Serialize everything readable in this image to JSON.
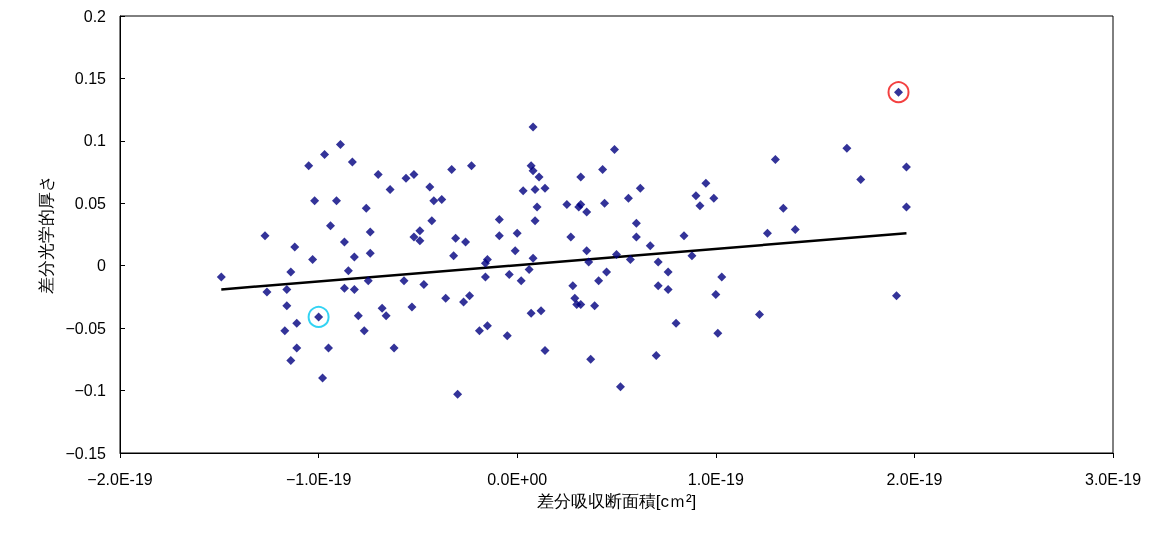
{
  "chart_data": {
    "type": "scatter",
    "xlabel": "差分吸収断面積[cｍ²]",
    "ylabel": "差分光学的厚さ",
    "xlim": [
      -2e-19,
      3e-19
    ],
    "xticks": [
      {
        "value": -2e-19,
        "label": "−2.0E-19"
      },
      {
        "value": -1e-19,
        "label": "−1.0E-19"
      },
      {
        "value": 0,
        "label": "0.0E+00"
      },
      {
        "value": 1e-19,
        "label": "1.0E-19"
      },
      {
        "value": 2e-19,
        "label": "2.0E-19"
      },
      {
        "value": 3e-19,
        "label": "3.0E-19"
      }
    ],
    "ylim": [
      -0.15,
      0.2
    ],
    "yticks": [
      -0.15,
      -0.1,
      -0.05,
      0,
      0.05,
      0.1,
      0.15,
      0.2
    ],
    "grid": false,
    "series": [
      {
        "marker": "diamond",
        "color": "#000080",
        "x": [
          -1.49e-19,
          -1.27e-19,
          -1.26e-19,
          -1.12e-19,
          -1.14e-19,
          -1.16e-19,
          -1.16e-19,
          -1.03e-19,
          -1e-19,
          -1.11e-19,
          -1.17e-19,
          -1.11e-19,
          -1.14e-19,
          -9.5e-20,
          -9.8e-20,
          -1.05e-19,
          -9.7e-20,
          -8.9e-20,
          -8.3e-20,
          -1.02e-19,
          -9.1e-20,
          -7.6e-20,
          -9.4e-20,
          -8.7e-20,
          -7.4e-20,
          -8.2e-20,
          -7.4e-20,
          -8.5e-20,
          -8.7e-20,
          -8.2e-20,
          -7.5e-20,
          -8e-20,
          -7.7e-20,
          8e-21,
          -7e-20,
          -6.4e-20,
          -5.6e-20,
          -5.2e-20,
          -4.4e-20,
          -4.2e-20,
          -3.8e-20,
          -3.3e-20,
          -2.3e-20,
          -4.3e-20,
          -5.2e-20,
          -4.9e-20,
          -4.9e-20,
          -3.1e-20,
          -2.6e-20,
          -3.2e-20,
          -9e-21,
          -9e-21,
          0.0,
          -1e-21,
          -1.5e-20,
          -1.6e-20,
          -1.6e-20,
          -4e-21,
          2e-21,
          6e-21,
          8e-21,
          -5.7e-20,
          -4.7e-20,
          -3.6e-20,
          -2.7e-20,
          -2.4e-20,
          -6.8e-20,
          -6.6e-20,
          -5.3e-20,
          -6.2e-20,
          -1.9e-20,
          -1.5e-20,
          -5e-21,
          7e-21,
          1.2e-20,
          -3e-20,
          7e-21,
          8e-21,
          3e-21,
          9e-21,
          1e-20,
          9e-21,
          1.1e-20,
          1.4e-20,
          1.4e-20,
          4.9e-20,
          3.2e-20,
          4.3e-20,
          2.5e-20,
          3.2e-20,
          3.1e-20,
          3.5e-20,
          4.4e-20,
          5.6e-20,
          6.2e-20,
          6e-20,
          6e-20,
          2.7e-20,
          3.5e-20,
          3.6e-20,
          5e-20,
          5.7e-20,
          6.7e-20,
          7.1e-20,
          8.4e-20,
          8.8e-20,
          9.5e-20,
          9e-20,
          9.2e-20,
          4.5e-20,
          4.1e-20,
          2.8e-20,
          2.9e-20,
          3e-20,
          3.2e-20,
          3.9e-20,
          7.6e-20,
          7.1e-20,
          7.6e-20,
          8e-20,
          3.7e-20,
          7e-20,
          5.2e-20,
          1.92e-19,
          1.66e-19,
          1.3e-19,
          1.96e-19,
          1.73e-19,
          9.9e-20,
          1.34e-19,
          1.96e-19,
          1.26e-19,
          1.4e-19,
          1.03e-19,
          1e-19,
          1.22e-19,
          1.01e-19,
          1.91e-19
        ],
        "values": [
          -0.009,
          0.024,
          -0.021,
          0.015,
          -0.005,
          -0.019,
          -0.032,
          0.005,
          -0.041,
          -0.046,
          -0.052,
          -0.066,
          -0.076,
          -0.066,
          -0.09,
          0.08,
          0.089,
          0.097,
          0.083,
          0.052,
          0.052,
          0.046,
          0.032,
          0.019,
          0.027,
          0.007,
          0.01,
          -0.004,
          -0.018,
          -0.019,
          -0.012,
          -0.04,
          -0.052,
          0.111,
          0.073,
          0.061,
          0.07,
          0.073,
          0.063,
          0.052,
          0.053,
          0.077,
          0.08,
          0.036,
          0.023,
          0.028,
          0.02,
          0.022,
          0.019,
          0.008,
          0.037,
          0.024,
          0.026,
          0.012,
          0.005,
          0.002,
          -0.009,
          -0.007,
          -0.012,
          -0.003,
          0.006,
          -0.012,
          -0.015,
          -0.026,
          -0.029,
          -0.024,
          -0.034,
          -0.04,
          -0.033,
          -0.066,
          -0.052,
          -0.048,
          -0.056,
          -0.038,
          -0.036,
          -0.103,
          0.08,
          0.076,
          0.06,
          0.061,
          0.047,
          0.036,
          0.071,
          0.062,
          -0.068,
          0.093,
          0.071,
          0.077,
          0.049,
          0.049,
          0.047,
          0.043,
          0.05,
          0.054,
          0.062,
          0.034,
          0.023,
          0.023,
          0.012,
          0.003,
          0.009,
          0.005,
          0.016,
          0.003,
          0.024,
          0.008,
          0.066,
          0.056,
          0.048,
          -0.005,
          -0.012,
          -0.016,
          -0.026,
          -0.031,
          -0.031,
          -0.032,
          -0.005,
          -0.016,
          -0.019,
          -0.046,
          -0.075,
          -0.072,
          -0.097,
          0.139,
          0.094,
          0.085,
          0.079,
          0.069,
          0.054,
          0.046,
          0.047,
          0.026,
          0.029,
          -0.009,
          -0.023,
          -0.039,
          -0.054,
          -0.024
        ]
      },
      {
        "type": "line",
        "marker": "none",
        "line_style": "solid",
        "color": "#000000",
        "x": [
          -1.49e-19,
          1.96e-19
        ],
        "values": [
          -0.019,
          0.026
        ]
      },
      {
        "type": "scatter",
        "marker": "circle",
        "color": "#00c8f0",
        "x": [
          -1e-19
        ],
        "values": [
          -0.041
        ]
      },
      {
        "type": "scatter",
        "marker": "circle",
        "color": "#f01010",
        "x": [
          1.92e-19
        ],
        "values": [
          0.139
        ]
      }
    ]
  }
}
